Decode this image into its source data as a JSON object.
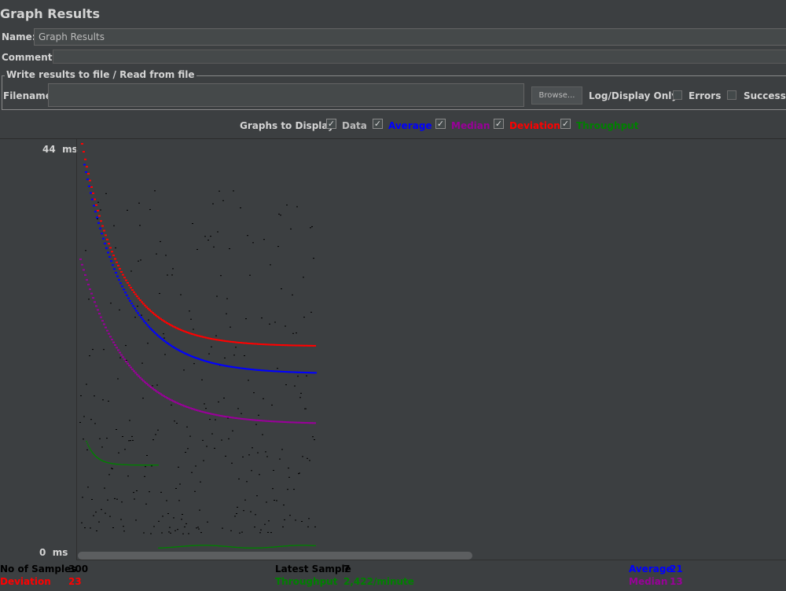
{
  "title": "Graph Results",
  "name": {
    "label": "Name:",
    "value": "Graph Results"
  },
  "comments": {
    "label": "Comments:",
    "value": ""
  },
  "file_section": {
    "legend": "Write results to file / Read from file",
    "filename_label": "Filename",
    "filename_value": "",
    "browse_label": "Browse...",
    "log_display_label": "Log/Display Only:",
    "errors_label": "Errors",
    "successes_label": "Successes"
  },
  "graphs_to_display": {
    "label": "Graphs to Display",
    "options": [
      {
        "label": "Data",
        "checked": true,
        "color": "#000000"
      },
      {
        "label": "Average",
        "checked": true,
        "color": "#0000ff"
      },
      {
        "label": "Median",
        "checked": true,
        "color": "#990099"
      },
      {
        "label": "Deviation",
        "checked": true,
        "color": "#ff0000"
      },
      {
        "label": "Throughput",
        "checked": true,
        "color": "#008000"
      }
    ]
  },
  "chart_data": {
    "type": "scatter",
    "title": "",
    "xlabel": "",
    "ylabel": "ms",
    "ylim": [
      0,
      44
    ],
    "x_range": [
      0,
      300
    ],
    "y_tick_labels": [
      "44",
      "0"
    ],
    "y_unit": "ms",
    "series": [
      {
        "name": "Data",
        "color": "#000000"
      },
      {
        "name": "Average",
        "color": "#0000ff"
      },
      {
        "name": "Median",
        "color": "#990099"
      },
      {
        "name": "Deviation",
        "color": "#ff0000"
      },
      {
        "name": "Throughput",
        "color": "#008000"
      }
    ]
  },
  "stats": {
    "samples_label": "No of Samples",
    "samples_value": "300",
    "latest_label": "Latest Sample",
    "latest_value": "7",
    "average_label": "Average",
    "average_value": "21",
    "deviation_label": "Deviation",
    "deviation_value": "23",
    "throughput_label": "Throughput",
    "throughput_value": "2,422/minute",
    "median_label": "Median",
    "median_value": "13"
  }
}
